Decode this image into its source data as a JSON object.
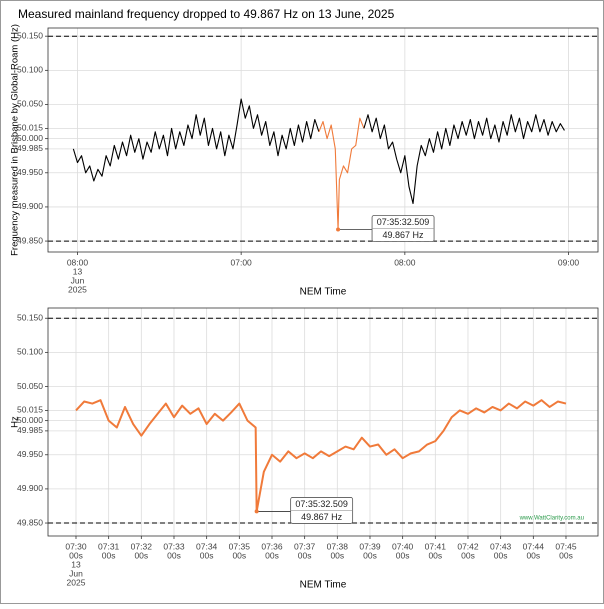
{
  "chart_data": [
    {
      "type": "line",
      "title": "Measured mainland frequency dropped to 49.867 Hz on 13 June, 2025",
      "x_label": "NEM Time",
      "y_label": "Frequency measured in Brisbane by Global-Roam (Hz)",
      "xlim": [
        -0.18,
        3.18
      ],
      "xticks": [
        {
          "value": 0,
          "label": [
            "08:00",
            "13",
            "Jun",
            "2025"
          ]
        },
        {
          "value": 1,
          "label": [
            "07:00"
          ]
        },
        {
          "value": 2,
          "label": [
            "08:00"
          ]
        },
        {
          "value": 3,
          "label": [
            "09:00"
          ]
        }
      ],
      "ylim": [
        49.834,
        50.162
      ],
      "yticks": [
        {
          "value": 49.85,
          "label": "49.850"
        },
        {
          "value": 49.9,
          "label": "49.900"
        },
        {
          "value": 49.95,
          "label": "49.950"
        },
        {
          "value": 49.985,
          "label": "49.985"
        },
        {
          "value": 50.0,
          "label": "50.000"
        },
        {
          "value": 50.015,
          "label": "50.015"
        },
        {
          "value": 50.05,
          "label": "50.050"
        },
        {
          "value": 50.1,
          "label": "50.100"
        },
        {
          "value": 50.15,
          "label": "50.150"
        }
      ],
      "grid": true,
      "reference_lines": [
        49.85,
        50.15
      ],
      "series": [
        {
          "color": "#000000",
          "x": [
            -0.025,
            0,
            0.025,
            0.05,
            0.075,
            0.1,
            0.125,
            0.15,
            0.175,
            0.2,
            0.225,
            0.25,
            0.275,
            0.3,
            0.325,
            0.35,
            0.375,
            0.4,
            0.425,
            0.45,
            0.475,
            0.5,
            0.525,
            0.55,
            0.575,
            0.6,
            0.625,
            0.65,
            0.675,
            0.7,
            0.725,
            0.75,
            0.775,
            0.8,
            0.825,
            0.85,
            0.875,
            0.9,
            0.925,
            0.95,
            0.975,
            1.0,
            1.025,
            1.05,
            1.075,
            1.1,
            1.125,
            1.15,
            1.175,
            1.2,
            1.225,
            1.25,
            1.275,
            1.3,
            1.325,
            1.35,
            1.375,
            1.4,
            1.425,
            1.45,
            1.475
          ],
          "values": [
            49.985,
            49.965,
            49.975,
            49.95,
            49.96,
            49.938,
            49.955,
            49.945,
            49.975,
            49.96,
            49.99,
            49.97,
            49.995,
            49.975,
            50.005,
            49.98,
            50.0,
            49.97,
            49.995,
            49.98,
            50.01,
            49.985,
            50.005,
            49.975,
            50.015,
            49.985,
            50.01,
            49.99,
            50.02,
            50.0,
            50.035,
            50.005,
            50.03,
            49.99,
            50.015,
            49.985,
            50.01,
            49.975,
            50.005,
            49.985,
            50.02,
            50.058,
            50.03,
            50.048,
            50.015,
            50.035,
            50.005,
            50.025,
            49.99,
            50.01,
            49.975,
            50.005,
            49.985,
            50.015,
            49.99,
            50.02,
            49.995,
            50.025,
            50.0,
            50.028,
            50.01
          ]
        },
        {
          "color": "#f07a3a",
          "x": [
            1.475,
            1.5,
            1.525,
            1.55,
            1.575,
            1.592,
            1.6,
            1.625,
            1.65,
            1.675,
            1.7,
            1.725,
            1.75
          ],
          "values": [
            50.01,
            50.025,
            50.0,
            50.02,
            49.985,
            49.867,
            49.94,
            49.96,
            49.95,
            49.985,
            49.99,
            50.03,
            50.015
          ]
        },
        {
          "color": "#000000",
          "x": [
            1.75,
            1.775,
            1.8,
            1.825,
            1.85,
            1.875,
            1.9,
            1.925,
            1.95,
            1.975,
            2.0,
            2.025,
            2.05,
            2.075,
            2.1,
            2.125,
            2.15,
            2.175,
            2.2,
            2.225,
            2.25,
            2.275,
            2.3,
            2.325,
            2.35,
            2.375,
            2.4,
            2.425,
            2.45,
            2.475,
            2.5,
            2.525,
            2.55,
            2.575,
            2.6,
            2.625,
            2.65,
            2.675,
            2.7,
            2.725,
            2.75,
            2.775,
            2.8,
            2.825,
            2.85,
            2.875,
            2.9,
            2.925,
            2.95,
            2.975
          ],
          "values": [
            50.015,
            50.035,
            50.01,
            50.03,
            50.0,
            50.02,
            49.985,
            49.995,
            49.97,
            49.95,
            49.975,
            49.93,
            49.905,
            49.96,
            49.99,
            49.975,
            50.0,
            49.98,
            50.01,
            49.985,
            50.015,
            49.99,
            50.02,
            50.0,
            50.025,
            50.005,
            50.028,
            50.0,
            50.025,
            50.005,
            50.03,
            50.0,
            50.02,
            49.995,
            50.025,
            50.005,
            50.035,
            50.01,
            50.03,
            50.0,
            50.025,
            50.01,
            50.035,
            50.01,
            50.028,
            50.005,
            50.025,
            50.01,
            50.022,
            50.012
          ]
        }
      ],
      "annotation": {
        "x": 1.592,
        "y": 49.867,
        "labels": [
          "07:35:32.509",
          "49.867 Hz"
        ]
      }
    },
    {
      "type": "line",
      "x_label": "NEM Time",
      "y_label": "Hz",
      "xlim": [
        -0.857,
        15.98
      ],
      "xticks": [
        {
          "value": 0,
          "label": [
            "07:30",
            "00s",
            "13",
            "Jun",
            "2025"
          ]
        },
        {
          "value": 1,
          "label": [
            "07:31",
            "00s"
          ]
        },
        {
          "value": 2,
          "label": [
            "07:32",
            "00s"
          ]
        },
        {
          "value": 3,
          "label": [
            "07:33",
            "00s"
          ]
        },
        {
          "value": 4,
          "label": [
            "07:34",
            "00s"
          ]
        },
        {
          "value": 5,
          "label": [
            "07:35",
            "00s"
          ]
        },
        {
          "value": 6,
          "label": [
            "07:36",
            "00s"
          ]
        },
        {
          "value": 7,
          "label": [
            "07:37",
            "00s"
          ]
        },
        {
          "value": 8,
          "label": [
            "07:38",
            "00s"
          ]
        },
        {
          "value": 9,
          "label": [
            "07:39",
            "00s"
          ]
        },
        {
          "value": 10,
          "label": [
            "07:40",
            "00s"
          ]
        },
        {
          "value": 11,
          "label": [
            "07:41",
            "00s"
          ]
        },
        {
          "value": 12,
          "label": [
            "07:42",
            "00s"
          ]
        },
        {
          "value": 13,
          "label": [
            "07:43",
            "00s"
          ]
        },
        {
          "value": 14,
          "label": [
            "07:44",
            "00s"
          ]
        },
        {
          "value": 15,
          "label": [
            "07:45",
            "00s"
          ]
        }
      ],
      "ylim": [
        49.831,
        50.165
      ],
      "yticks": [
        {
          "value": 49.85,
          "label": "49.850"
        },
        {
          "value": 49.9,
          "label": "49.900"
        },
        {
          "value": 49.95,
          "label": "49.950"
        },
        {
          "value": 49.985,
          "label": "49.985"
        },
        {
          "value": 50.0,
          "label": "50.000"
        },
        {
          "value": 50.015,
          "label": "50.015"
        },
        {
          "value": 50.05,
          "label": "50.050"
        },
        {
          "value": 50.1,
          "label": "50.100"
        },
        {
          "value": 50.15,
          "label": "50.150"
        }
      ],
      "grid": true,
      "reference_lines": [
        49.85,
        50.15
      ],
      "series": [
        {
          "color": "#f07a3a",
          "x": [
            0,
            0.25,
            0.5,
            0.75,
            1.0,
            1.25,
            1.5,
            1.75,
            2.0,
            2.25,
            2.5,
            2.75,
            3.0,
            3.25,
            3.5,
            3.75,
            4.0,
            4.25,
            4.5,
            4.75,
            5.0,
            5.25,
            5.5,
            5.53,
            5.75,
            6.0,
            6.25,
            6.5,
            6.75,
            7.0,
            7.25,
            7.5,
            7.75,
            8.0,
            8.25,
            8.5,
            8.75,
            9.0,
            9.25,
            9.5,
            9.75,
            10.0,
            10.25,
            10.5,
            10.75,
            11.0,
            11.25,
            11.5,
            11.75,
            12.0,
            12.25,
            12.5,
            12.75,
            13.0,
            13.25,
            13.5,
            13.75,
            14.0,
            14.25,
            14.5,
            14.75,
            15.0
          ],
          "values": [
            50.015,
            50.028,
            50.025,
            50.03,
            50.0,
            49.99,
            50.02,
            49.995,
            49.978,
            49.995,
            50.01,
            50.025,
            50.005,
            50.022,
            50.01,
            50.018,
            49.995,
            50.01,
            50.0,
            50.012,
            50.025,
            50.0,
            49.99,
            49.867,
            49.925,
            49.95,
            49.94,
            49.955,
            49.945,
            49.952,
            49.945,
            49.955,
            49.948,
            49.955,
            49.962,
            49.958,
            49.975,
            49.962,
            49.965,
            49.95,
            49.958,
            49.945,
            49.952,
            49.955,
            49.965,
            49.97,
            49.985,
            50.005,
            50.015,
            50.01,
            50.018,
            50.012,
            50.02,
            50.015,
            50.025,
            50.018,
            50.028,
            50.022,
            50.03,
            50.02,
            50.028,
            50.025
          ]
        }
      ],
      "annotation": {
        "x": 5.53,
        "y": 49.867,
        "labels": [
          "07:35:32.509",
          "49.867 Hz"
        ]
      },
      "watermark": "www.WattClarity.com.au"
    }
  ]
}
